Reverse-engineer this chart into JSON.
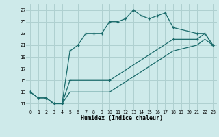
{
  "xlabel": "Humidex (Indice chaleur)",
  "bg_color": "#ceeaea",
  "grid_color": "#afd0d0",
  "line_color": "#1a6b6b",
  "xlim": [
    -0.5,
    23.5
  ],
  "ylim": [
    10.0,
    28.0
  ],
  "xticks": [
    0,
    1,
    2,
    3,
    4,
    5,
    6,
    7,
    8,
    9,
    10,
    11,
    12,
    13,
    14,
    15,
    16,
    17,
    18,
    19,
    20,
    21,
    22,
    23
  ],
  "yticks": [
    11,
    13,
    15,
    17,
    19,
    21,
    23,
    25,
    27
  ],
  "series1_x": [
    0,
    1,
    2,
    3,
    4,
    5,
    6,
    7,
    8,
    9,
    10,
    11,
    12,
    13,
    14,
    15,
    16,
    17,
    18,
    21,
    22,
    23
  ],
  "series1_y": [
    13,
    12,
    12,
    11,
    11,
    20,
    21,
    23,
    23,
    23,
    25,
    25,
    25.5,
    27,
    26,
    25.5,
    26,
    26.5,
    24,
    23,
    23,
    21
  ],
  "series2_x": [
    0,
    1,
    2,
    3,
    4,
    5,
    10,
    18,
    21,
    22,
    23
  ],
  "series2_y": [
    13,
    12,
    12,
    11,
    11,
    15,
    15,
    22,
    22,
    23,
    21
  ],
  "series3_x": [
    2,
    3,
    4,
    5,
    10,
    18,
    21,
    22,
    23
  ],
  "series3_y": [
    12,
    11,
    11,
    13,
    13,
    20,
    21,
    22,
    21
  ]
}
